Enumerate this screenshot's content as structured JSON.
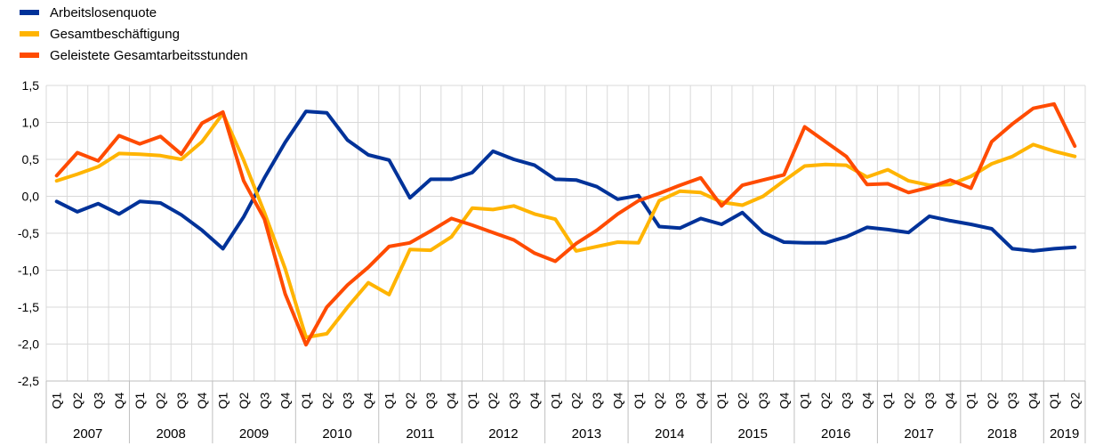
{
  "chart_data": {
    "type": "line",
    "x": [
      "2007 Q1",
      "2007 Q2",
      "2007 Q3",
      "2007 Q4",
      "2008 Q1",
      "2008 Q2",
      "2008 Q3",
      "2008 Q4",
      "2009 Q1",
      "2009 Q2",
      "2009 Q3",
      "2009 Q4",
      "2010 Q1",
      "2010 Q2",
      "2010 Q3",
      "2010 Q4",
      "2011 Q1",
      "2011 Q2",
      "2011 Q3",
      "2011 Q4",
      "2012 Q1",
      "2012 Q2",
      "2012 Q3",
      "2012 Q4",
      "2013 Q1",
      "2013 Q2",
      "2013 Q3",
      "2013 Q4",
      "2014 Q1",
      "2014 Q2",
      "2014 Q3",
      "2014 Q4",
      "2015 Q1",
      "2015 Q2",
      "2015 Q3",
      "2015 Q4",
      "2016 Q1",
      "2016 Q2",
      "2016 Q3",
      "2016 Q4",
      "2017 Q1",
      "2017 Q2",
      "2017 Q3",
      "2017 Q4",
      "2018 Q1",
      "2018 Q2",
      "2018 Q3",
      "2018 Q4",
      "2019 Q1",
      "2019 Q2"
    ],
    "quarter_labels": [
      "Q1",
      "Q2",
      "Q3",
      "Q4",
      "Q1",
      "Q2",
      "Q3",
      "Q4",
      "Q1",
      "Q2",
      "Q3",
      "Q4",
      "Q1",
      "Q2",
      "Q3",
      "Q4",
      "Q1",
      "Q2",
      "Q3",
      "Q4",
      "Q1",
      "Q2",
      "Q3",
      "Q4",
      "Q1",
      "Q2",
      "Q3",
      "Q4",
      "Q1",
      "Q2",
      "Q3",
      "Q4",
      "Q1",
      "Q2",
      "Q3",
      "Q4",
      "Q1",
      "Q2",
      "Q3",
      "Q4",
      "Q1",
      "Q2",
      "Q3",
      "Q4",
      "Q1",
      "Q2",
      "Q3",
      "Q4",
      "Q1",
      "Q2"
    ],
    "year_labels": [
      {
        "label": "2007",
        "quarters": 4
      },
      {
        "label": "2008",
        "quarters": 4
      },
      {
        "label": "2009",
        "quarters": 4
      },
      {
        "label": "2010",
        "quarters": 4
      },
      {
        "label": "2011",
        "quarters": 4
      },
      {
        "label": "2012",
        "quarters": 4
      },
      {
        "label": "2013",
        "quarters": 4
      },
      {
        "label": "2014",
        "quarters": 4
      },
      {
        "label": "2015",
        "quarters": 4
      },
      {
        "label": "2016",
        "quarters": 4
      },
      {
        "label": "2017",
        "quarters": 4
      },
      {
        "label": "2018",
        "quarters": 4
      },
      {
        "label": "2019",
        "quarters": 2
      }
    ],
    "series": [
      {
        "name": "Arbeitslosenquote",
        "color": "#003299",
        "values": [
          -0.07,
          -0.21,
          -0.1,
          -0.24,
          -0.07,
          -0.09,
          -0.25,
          -0.46,
          -0.71,
          -0.28,
          0.25,
          0.73,
          1.15,
          1.13,
          0.76,
          0.56,
          0.49,
          -0.02,
          0.23,
          0.23,
          0.32,
          0.61,
          0.5,
          0.42,
          0.23,
          0.22,
          0.13,
          -0.04,
          0.01,
          -0.41,
          -0.43,
          -0.3,
          -0.38,
          -0.22,
          -0.49,
          -0.62,
          -0.63,
          -0.63,
          -0.55,
          -0.42,
          -0.45,
          -0.49,
          -0.27,
          -0.33,
          -0.38,
          -0.44,
          -0.71,
          -0.74,
          -0.71,
          -0.69
        ]
      },
      {
        "name": "Gesamtbeschäftigung",
        "color": "#FFB400",
        "values": [
          0.21,
          0.3,
          0.4,
          0.58,
          0.57,
          0.55,
          0.5,
          0.74,
          1.12,
          0.49,
          -0.22,
          -0.98,
          -1.91,
          -1.86,
          -1.5,
          -1.17,
          -1.33,
          -0.72,
          -0.73,
          -0.55,
          -0.16,
          -0.18,
          -0.13,
          -0.24,
          -0.31,
          -0.74,
          -0.68,
          -0.62,
          -0.63,
          -0.06,
          0.07,
          0.05,
          -0.08,
          -0.12,
          0.0,
          0.21,
          0.41,
          0.43,
          0.42,
          0.26,
          0.36,
          0.21,
          0.15,
          0.16,
          0.27,
          0.44,
          0.54,
          0.7,
          0.61,
          0.54
        ]
      },
      {
        "name": "Geleistete Gesamtarbeitsstunden",
        "color": "#FF4B00",
        "values": [
          0.28,
          0.59,
          0.48,
          0.82,
          0.71,
          0.81,
          0.57,
          0.99,
          1.14,
          0.21,
          -0.31,
          -1.32,
          -2.01,
          -1.5,
          -1.2,
          -0.96,
          -0.68,
          -0.63,
          -0.47,
          -0.3,
          -0.39,
          -0.49,
          -0.59,
          -0.77,
          -0.88,
          -0.64,
          -0.46,
          -0.24,
          -0.06,
          0.04,
          0.15,
          0.25,
          -0.13,
          0.15,
          0.22,
          0.29,
          0.94,
          0.74,
          0.54,
          0.16,
          0.17,
          0.05,
          0.12,
          0.22,
          0.11,
          0.74,
          0.98,
          1.19,
          1.25,
          0.68
        ]
      }
    ],
    "ylim": [
      -2.5,
      1.5
    ],
    "yticks": [
      "1,5",
      "1,0",
      "0,5",
      "0,0",
      "-0,5",
      "-1,0",
      "-1,5",
      "-2,0",
      "-2,5"
    ],
    "ytick_values": [
      1.5,
      1.0,
      0.5,
      0.0,
      -0.5,
      -1.0,
      -1.5,
      -2.0,
      -2.5
    ],
    "grid": true,
    "legend_position": "top-left"
  }
}
